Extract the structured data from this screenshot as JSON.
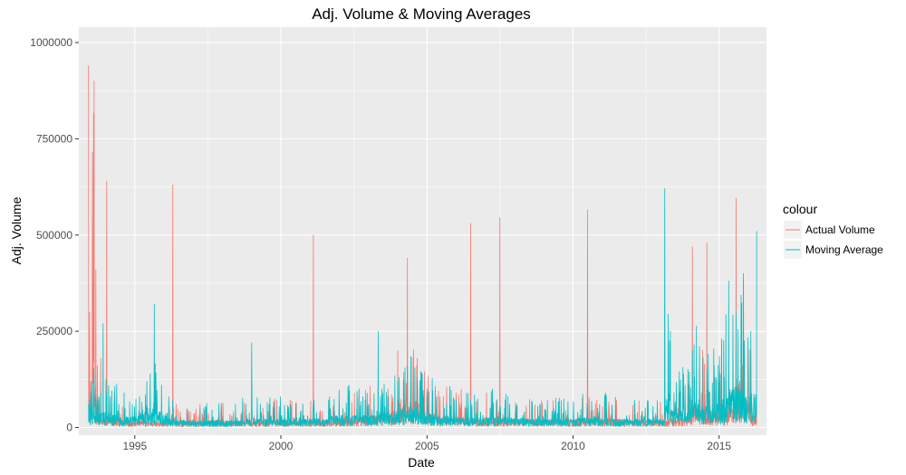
{
  "chart_data": {
    "type": "line",
    "title": "Adj. Volume & Moving Averages",
    "xlabel": "Date",
    "ylabel": "Adj. Volume",
    "xlim": [
      "1993-01-31",
      "2016-08-15"
    ],
    "ylim": [
      -20000,
      1040000
    ],
    "x_ticks": [
      "1995",
      "2000",
      "2005",
      "2010",
      "2015"
    ],
    "y_ticks": [
      "0",
      "250000",
      "500000",
      "750000",
      "1000000"
    ],
    "grid": true,
    "legend": {
      "title": "colour",
      "placement": "right",
      "entries": [
        "Actual Volume",
        "Moving Average"
      ]
    },
    "series": [
      {
        "name": "Actual Volume",
        "color": "#F8766D",
        "x": [
          "1993-06-01",
          "1993-06-15",
          "1993-07-01",
          "1993-07-20",
          "1993-08-10",
          "1993-09-01",
          "1993-09-20",
          "1993-10-10",
          "1993-11-01",
          "1993-12-01",
          "1994-01-15",
          "1994-03-01",
          "1994-04-20",
          "1994-06-15",
          "1994-09-01",
          "1994-12-01",
          "1995-03-01",
          "1995-06-01",
          "1995-09-01",
          "1995-12-01",
          "1996-03-01",
          "1996-04-20",
          "1996-06-01",
          "1996-09-01",
          "1997-01-01",
          "1997-05-01",
          "1997-09-01",
          "1998-01-01",
          "1998-05-01",
          "1998-09-01",
          "1999-01-01",
          "1999-05-01",
          "1999-09-01",
          "2000-01-01",
          "2000-05-01",
          "2000-09-01",
          "2000-12-01",
          "2001-02-10",
          "2001-05-01",
          "2001-09-01",
          "2002-01-01",
          "2002-05-01",
          "2002-09-01",
          "2003-01-01",
          "2003-05-01",
          "2003-09-01",
          "2004-01-01",
          "2004-05-01",
          "2004-09-01",
          "2005-01-01",
          "2005-05-01",
          "2005-09-01",
          "2006-01-01",
          "2006-05-01",
          "2006-07-01",
          "2006-11-01",
          "2007-03-01",
          "2007-07-01",
          "2007-11-01",
          "2008-05-01",
          "2008-11-01",
          "2009-05-01",
          "2009-11-01",
          "2010-03-01",
          "2010-07-01",
          "2010-11-01",
          "2011-05-01",
          "2011-11-01",
          "2012-05-01",
          "2012-11-01",
          "2013-05-01",
          "2013-11-01",
          "2014-02-01",
          "2014-05-01",
          "2014-08-01",
          "2014-11-01",
          "2015-02-01",
          "2015-05-01",
          "2015-08-01",
          "2015-11-01",
          "2016-02-01",
          "2016-04-15"
        ],
        "values": [
          940000,
          300000,
          120000,
          715000,
          900000,
          410000,
          160000,
          60000,
          180000,
          30000,
          640000,
          40000,
          90000,
          25000,
          15000,
          20000,
          18000,
          15000,
          12000,
          10000,
          12000,
          630000,
          60000,
          15000,
          20000,
          25000,
          20000,
          30000,
          15000,
          40000,
          20000,
          15000,
          25000,
          30000,
          25000,
          20000,
          30000,
          500000,
          40000,
          20000,
          30000,
          40000,
          80000,
          60000,
          90000,
          100000,
          200000,
          440000,
          180000,
          100000,
          80000,
          60000,
          90000,
          50000,
          530000,
          40000,
          50000,
          545000,
          30000,
          40000,
          30000,
          25000,
          30000,
          30000,
          565000,
          40000,
          30000,
          30000,
          20000,
          30000,
          40000,
          80000,
          470000,
          150000,
          480000,
          120000,
          100000,
          140000,
          595000,
          380000,
          200000,
          60000
        ]
      },
      {
        "name": "Moving Average",
        "color": "#00BFC4",
        "x": [
          "1993-06-01",
          "1993-06-15",
          "1993-07-01",
          "1993-07-20",
          "1993-08-10",
          "1993-09-01",
          "1993-09-20",
          "1993-10-10",
          "1993-11-01",
          "1993-12-01",
          "1994-01-15",
          "1994-03-01",
          "1994-04-20",
          "1994-06-15",
          "1994-09-01",
          "1994-12-01",
          "1995-03-01",
          "1995-06-01",
          "1995-09-01",
          "1995-12-01",
          "1996-03-01",
          "1996-04-20",
          "1996-06-01",
          "1996-09-01",
          "1997-01-01",
          "1997-05-01",
          "1997-09-01",
          "1998-01-01",
          "1998-05-01",
          "1998-09-01",
          "1999-01-01",
          "1999-05-01",
          "1999-09-01",
          "2000-01-01",
          "2000-05-01",
          "2000-09-01",
          "2000-12-01",
          "2001-02-10",
          "2001-05-01",
          "2001-09-01",
          "2002-01-01",
          "2002-05-01",
          "2002-09-01",
          "2003-01-01",
          "2003-05-01",
          "2003-09-01",
          "2004-01-01",
          "2004-05-01",
          "2004-09-01",
          "2005-01-01",
          "2005-05-01",
          "2005-09-01",
          "2006-01-01",
          "2006-05-01",
          "2006-07-01",
          "2006-11-01",
          "2007-03-01",
          "2007-07-01",
          "2007-11-01",
          "2008-05-01",
          "2008-11-01",
          "2009-05-01",
          "2009-11-01",
          "2010-03-01",
          "2010-07-01",
          "2010-11-01",
          "2011-05-01",
          "2011-11-01",
          "2012-05-01",
          "2012-11-01",
          "2013-02-20",
          "2013-05-01",
          "2013-11-01",
          "2014-02-01",
          "2014-05-01",
          "2014-08-01",
          "2014-11-01",
          "2015-02-01",
          "2015-05-01",
          "2015-08-01",
          "2015-11-01",
          "2016-02-01",
          "2016-04-15"
        ],
        "values": [
          60000,
          70000,
          90000,
          120000,
          100000,
          80000,
          60000,
          70000,
          90000,
          270000,
          90000,
          80000,
          70000,
          60000,
          50000,
          60000,
          80000,
          120000,
          320000,
          110000,
          80000,
          70000,
          30000,
          20000,
          20000,
          15000,
          20000,
          20000,
          15000,
          30000,
          220000,
          40000,
          30000,
          30000,
          60000,
          40000,
          30000,
          60000,
          30000,
          80000,
          60000,
          110000,
          60000,
          60000,
          250000,
          80000,
          120000,
          160000,
          130000,
          90000,
          80000,
          60000,
          70000,
          40000,
          70000,
          40000,
          50000,
          50000,
          60000,
          40000,
          30000,
          30000,
          30000,
          40000,
          50000,
          50000,
          40000,
          30000,
          30000,
          30000,
          620000,
          250000,
          110000,
          200000,
          210000,
          150000,
          160000,
          230000,
          380000,
          300000,
          400000,
          250000,
          510000
        ]
      }
    ]
  }
}
